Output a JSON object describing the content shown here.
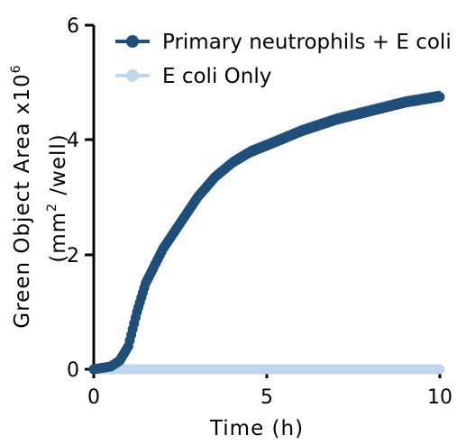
{
  "chart_data": {
    "type": "scatter",
    "xlabel": "Time (h)",
    "ylabel_line1": "Green Object Area x10",
    "ylabel_exp": "6",
    "ylabel_line2_a": "(mm",
    "ylabel_line2_exp": "2",
    "ylabel_line2_b": " /well)",
    "xlim": [
      0,
      10
    ],
    "ylim": [
      0,
      6
    ],
    "x_ticks": [
      0,
      5,
      10
    ],
    "y_ticks": [
      0,
      2,
      4,
      6
    ],
    "x_tick_labels": [
      "0",
      "5",
      "10"
    ],
    "y_tick_labels": [
      "0",
      "2",
      "4",
      "6"
    ],
    "legend_position": "top-right",
    "series": [
      {
        "name": "Primary neutrophils + E coli",
        "color": "#1f4e79",
        "has_error_bars": true,
        "points": [
          [
            0,
            0
          ],
          [
            0.5,
            0.05
          ],
          [
            0.75,
            0.15
          ],
          [
            1.0,
            0.4
          ],
          [
            1.25,
            1.0
          ],
          [
            1.5,
            1.5
          ],
          [
            2.0,
            2.1
          ],
          [
            2.5,
            2.55
          ],
          [
            3.0,
            3.0
          ],
          [
            3.5,
            3.35
          ],
          [
            4.0,
            3.6
          ],
          [
            4.5,
            3.78
          ],
          [
            5.0,
            3.9
          ],
          [
            6.0,
            4.15
          ],
          [
            7.0,
            4.35
          ],
          [
            8.0,
            4.5
          ],
          [
            9.0,
            4.65
          ],
          [
            10.0,
            4.75
          ]
        ]
      },
      {
        "name": "E coli Only",
        "color": "#bcd7ee",
        "has_error_bars": false,
        "points": [
          [
            0,
            0
          ],
          [
            2,
            0
          ],
          [
            4,
            0
          ],
          [
            6,
            0
          ],
          [
            8,
            0
          ],
          [
            10,
            0
          ]
        ]
      }
    ]
  }
}
